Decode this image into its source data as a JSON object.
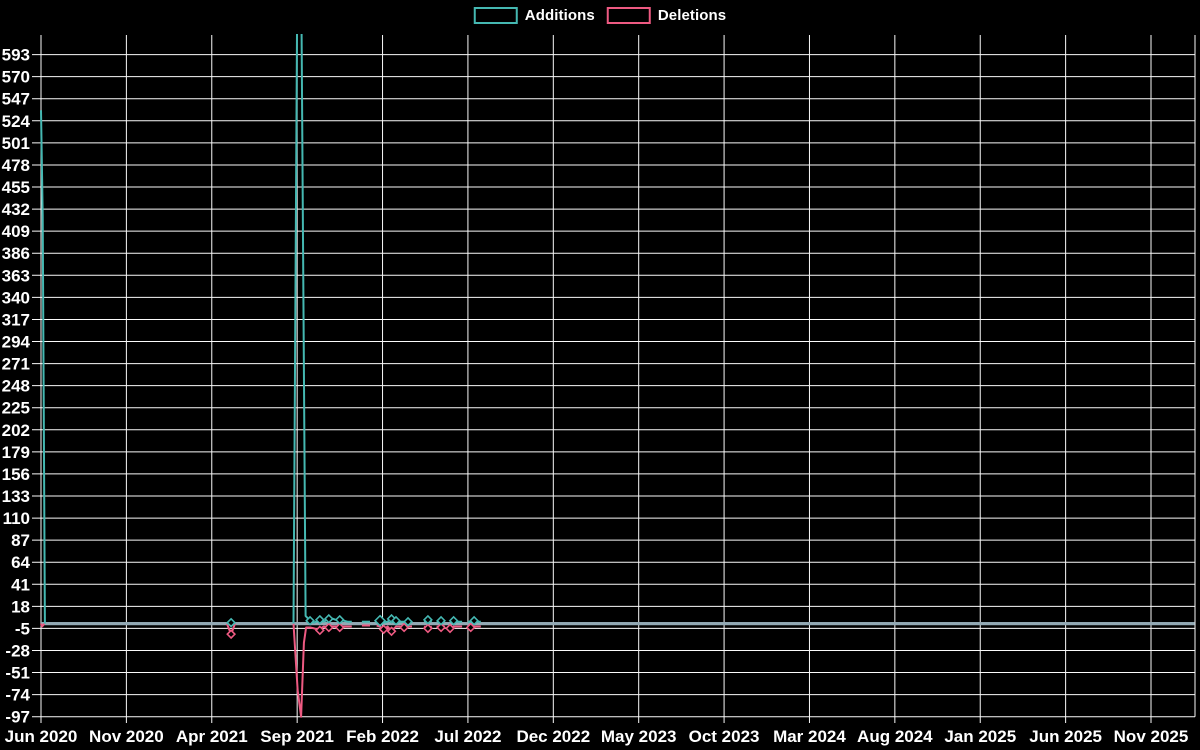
{
  "legend": {
    "items": [
      {
        "label": "Additions",
        "color": "#45b8b2"
      },
      {
        "label": "Deletions",
        "color": "#ee5a82"
      }
    ]
  },
  "chart_data": {
    "type": "line",
    "title": "",
    "background": "#000000",
    "grid": "on",
    "grid_color": "#fafafa",
    "text_color": "#ffffff",
    "legend_position": "top-center",
    "x_axis": {
      "type": "time",
      "tick_labels": [
        "Jun 2020",
        "Nov 2020",
        "Apr 2021",
        "Sep 2021",
        "Feb 2022",
        "Jul 2022",
        "Dec 2022",
        "May 2023",
        "Oct 2023",
        "Mar 2024",
        "Aug 2024",
        "Jan 2025",
        "Jun 2025",
        "Nov 2025"
      ],
      "range_start": "2020-06-01",
      "range_end": "2026-01-18"
    },
    "y_axis": {
      "min": -97,
      "max": 614,
      "tick_step": 23,
      "ticks": [
        593,
        570,
        547,
        524,
        501,
        478,
        455,
        432,
        409,
        386,
        363,
        340,
        317,
        294,
        271,
        248,
        225,
        202,
        179,
        156,
        133,
        110,
        87,
        64,
        41,
        18,
        -5,
        -28,
        -51,
        -74,
        -97
      ]
    },
    "zero_baseline": {
      "from": "2020-06-01",
      "to": "2026-01-18",
      "value": 0,
      "color": "#93a9b4"
    },
    "series": [
      {
        "name": "Deletions",
        "color": "#ee5a82",
        "segments": [
          [
            [
              "2020-06-01",
              0
            ],
            [
              "2020-06-03",
              -3
            ],
            [
              "2020-06-07",
              0
            ]
          ],
          [
            [
              "2021-04-28",
              0
            ],
            [
              "2021-05-05",
              -11,
              "m"
            ],
            [
              "2021-05-12",
              0
            ]
          ],
          [
            [
              "2021-08-25",
              0
            ],
            [
              "2021-09-02",
              -70
            ],
            [
              "2021-09-08",
              -97
            ],
            [
              "2021-09-13",
              -20
            ],
            [
              "2021-09-17",
              -4
            ],
            [
              "2021-09-24",
              -4
            ],
            [
              "2021-10-01",
              -5
            ],
            [
              "2021-10-11",
              -7,
              "m"
            ],
            [
              "2021-10-15",
              -4
            ],
            [
              "2021-10-18",
              -3
            ],
            [
              "2021-10-27",
              -4,
              "m"
            ],
            [
              "2021-11-02",
              -3
            ],
            [
              "2021-11-09",
              -3
            ],
            [
              "2021-11-16",
              -4,
              "m"
            ],
            [
              "2021-11-23",
              -3
            ],
            [
              "2021-11-30",
              -3
            ],
            [
              "2021-12-07",
              -3
            ]
          ],
          [
            [
              "2021-12-25",
              -2
            ],
            [
              "2022-01-01",
              -2
            ],
            [
              "2022-01-09",
              -2
            ]
          ],
          [
            [
              "2022-01-21",
              -2
            ],
            [
              "2022-01-27",
              -3
            ],
            [
              "2022-02-03",
              -6,
              "m"
            ],
            [
              "2022-02-10",
              -3
            ],
            [
              "2022-02-17",
              -8,
              "m"
            ],
            [
              "2022-02-25",
              -3
            ],
            [
              "2022-03-01",
              -3
            ],
            [
              "2022-03-09",
              -4,
              "m"
            ],
            [
              "2022-03-16",
              -3
            ],
            [
              "2022-03-23",
              -3
            ]
          ],
          [
            [
              "2022-04-14",
              -3
            ],
            [
              "2022-04-21",
              -5,
              "m"
            ],
            [
              "2022-04-28",
              -3
            ]
          ],
          [
            [
              "2022-05-06",
              -3
            ],
            [
              "2022-05-14",
              -4,
              "m"
            ],
            [
              "2022-05-21",
              -3
            ]
          ],
          [
            [
              "2022-05-30",
              -5,
              "m"
            ],
            [
              "2022-06-06",
              -3
            ],
            [
              "2022-06-13",
              -3
            ],
            [
              "2022-06-21",
              -3
            ]
          ],
          [
            [
              "2022-07-01",
              -3
            ],
            [
              "2022-07-06",
              -4,
              "m"
            ],
            [
              "2022-07-12",
              -3
            ],
            [
              "2022-07-19",
              -3
            ],
            [
              "2022-07-24",
              -3
            ]
          ]
        ]
      },
      {
        "name": "Additions",
        "color": "#45b8b2",
        "segments": [
          [
            [
              "2020-06-01",
              535
            ],
            [
              "2020-06-04",
              425
            ],
            [
              "2020-06-08",
              0
            ]
          ],
          [
            [
              "2021-04-28",
              0
            ],
            [
              "2021-05-05",
              1,
              "m"
            ],
            [
              "2021-05-12",
              0
            ]
          ],
          [
            [
              "2021-08-25",
              0
            ],
            [
              "2021-09-01",
              650
            ],
            [
              "2021-09-08",
              690
            ],
            [
              "2021-09-16",
              8
            ],
            [
              "2021-09-24",
              3,
              "m"
            ],
            [
              "2021-10-01",
              1
            ],
            [
              "2021-10-11",
              4,
              "m"
            ],
            [
              "2021-10-18",
              2
            ],
            [
              "2021-10-27",
              5,
              "m"
            ],
            [
              "2021-10-30",
              6
            ],
            [
              "2021-11-09",
              4
            ],
            [
              "2021-11-16",
              4,
              "m"
            ],
            [
              "2021-11-23",
              3
            ],
            [
              "2021-11-30",
              2
            ],
            [
              "2021-12-07",
              2
            ]
          ],
          [
            [
              "2021-12-25",
              2
            ],
            [
              "2022-01-01",
              2
            ],
            [
              "2022-01-09",
              2
            ]
          ],
          [
            [
              "2022-01-21",
              2
            ],
            [
              "2022-01-27",
              3,
              "M"
            ],
            [
              "2022-02-03",
              1
            ],
            [
              "2022-02-10",
              2
            ],
            [
              "2022-02-17",
              5,
              "m"
            ],
            [
              "2022-02-25",
              3,
              "m"
            ],
            [
              "2022-03-01",
              2
            ],
            [
              "2022-03-09",
              2
            ],
            [
              "2022-03-16",
              2,
              "m"
            ],
            [
              "2022-03-23",
              2
            ]
          ],
          [
            [
              "2022-04-14",
              2
            ],
            [
              "2022-04-21",
              4,
              "m"
            ],
            [
              "2022-04-28",
              2
            ]
          ],
          [
            [
              "2022-05-06",
              2
            ],
            [
              "2022-05-14",
              3,
              "m"
            ],
            [
              "2022-05-21",
              2
            ]
          ],
          [
            [
              "2022-05-30",
              2
            ],
            [
              "2022-06-06",
              3,
              "m"
            ],
            [
              "2022-06-13",
              2
            ],
            [
              "2022-06-21",
              2
            ]
          ],
          [
            [
              "2022-07-01",
              2
            ],
            [
              "2022-07-06",
              2
            ],
            [
              "2022-07-12",
              3,
              "m"
            ],
            [
              "2022-07-19",
              2
            ],
            [
              "2022-07-24",
              2
            ]
          ]
        ]
      }
    ]
  }
}
